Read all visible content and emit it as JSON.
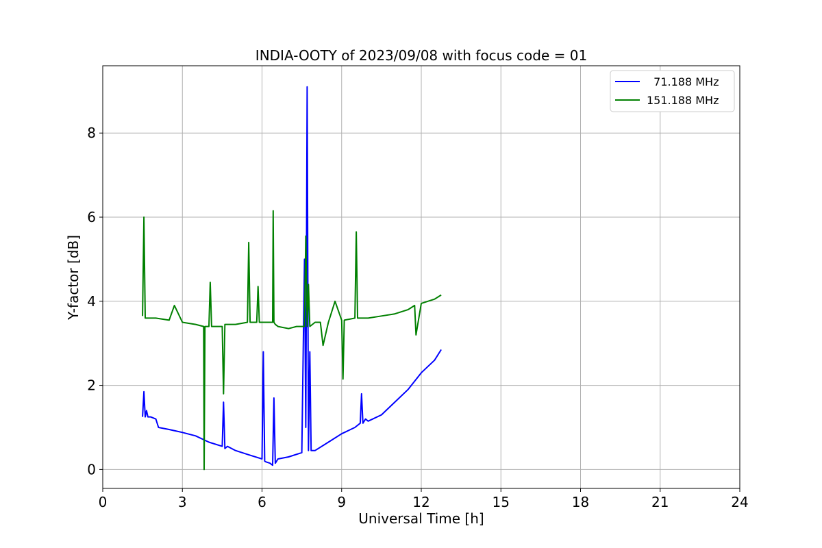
{
  "chart_data": {
    "type": "line",
    "title": "INDIA-OOTY of 2023/09/08 with focus code = 01",
    "xlabel": "Universal Time [h]",
    "ylabel": "Y-factor [dB]",
    "xlim": [
      0,
      24
    ],
    "ylim": [
      -0.45,
      9.6
    ],
    "xticks": [
      0,
      3,
      6,
      9,
      12,
      15,
      18,
      21,
      24
    ],
    "xtick_labels": [
      "0",
      "3",
      "6",
      "9",
      "12",
      "15",
      "18",
      "21",
      "24"
    ],
    "yticks": [
      0,
      2,
      4,
      6,
      8
    ],
    "ytick_labels": [
      "0",
      "2",
      "4",
      "6",
      "8"
    ],
    "grid": true,
    "legend_position": "top-right",
    "series": [
      {
        "name": "71.188 MHz",
        "legend_label": "  71.188 MHz",
        "color": "#0000ff",
        "x": [
          1.5,
          1.55,
          1.6,
          1.65,
          1.7,
          1.8,
          2.0,
          2.1,
          2.5,
          3.0,
          3.5,
          4.0,
          4.5,
          4.55,
          4.6,
          4.7,
          5.0,
          5.5,
          6.0,
          6.05,
          6.1,
          6.15,
          6.2,
          6.3,
          6.4,
          6.45,
          6.5,
          6.6,
          7.0,
          7.5,
          7.6,
          7.65,
          7.7,
          7.75,
          7.8,
          7.85,
          8.0,
          8.5,
          9.0,
          9.5,
          9.7,
          9.75,
          9.8,
          9.9,
          10.0,
          10.5,
          11.0,
          11.5,
          12.0,
          12.5,
          12.75
        ],
        "y": [
          1.25,
          1.85,
          1.25,
          1.4,
          1.25,
          1.25,
          1.2,
          1.0,
          0.95,
          0.88,
          0.8,
          0.65,
          0.55,
          1.6,
          0.5,
          0.55,
          0.45,
          0.35,
          0.25,
          2.8,
          0.2,
          0.18,
          0.17,
          0.15,
          0.1,
          1.7,
          0.15,
          0.25,
          0.3,
          0.4,
          5.0,
          1.0,
          9.1,
          0.45,
          2.8,
          0.45,
          0.45,
          0.65,
          0.85,
          1.0,
          1.1,
          1.8,
          1.1,
          1.2,
          1.15,
          1.3,
          1.6,
          1.9,
          2.3,
          2.6,
          2.85
        ]
      },
      {
        "name": "151.188 MHz",
        "legend_label": "151.188 MHz",
        "color": "#008000",
        "x": [
          1.5,
          1.55,
          1.6,
          1.65,
          2.0,
          2.5,
          2.7,
          3.0,
          3.5,
          3.8,
          3.82,
          3.85,
          4.0,
          4.05,
          4.1,
          4.5,
          4.55,
          4.6,
          5.0,
          5.45,
          5.5,
          5.55,
          5.8,
          5.85,
          5.9,
          6.4,
          6.42,
          6.45,
          6.5,
          6.6,
          7.0,
          7.3,
          7.6,
          7.65,
          7.7,
          7.75,
          7.8,
          8.0,
          8.2,
          8.3,
          8.5,
          8.75,
          9.0,
          9.05,
          9.1,
          9.5,
          9.55,
          9.6,
          10.0,
          10.5,
          11.0,
          11.5,
          11.75,
          11.8,
          12.0,
          12.5,
          12.75
        ],
        "y": [
          3.65,
          6.0,
          3.6,
          3.6,
          3.6,
          3.55,
          3.9,
          3.5,
          3.45,
          3.4,
          0.0,
          3.4,
          3.4,
          4.45,
          3.4,
          3.4,
          1.8,
          3.45,
          3.45,
          3.5,
          5.4,
          3.5,
          3.5,
          4.35,
          3.5,
          3.5,
          6.15,
          3.5,
          3.45,
          3.4,
          3.35,
          3.4,
          3.4,
          5.55,
          3.4,
          4.4,
          3.4,
          3.5,
          3.5,
          2.95,
          3.5,
          4.0,
          3.55,
          2.15,
          3.55,
          3.6,
          5.65,
          3.6,
          3.6,
          3.65,
          3.7,
          3.8,
          3.9,
          3.2,
          3.95,
          4.05,
          4.15
        ]
      }
    ]
  }
}
